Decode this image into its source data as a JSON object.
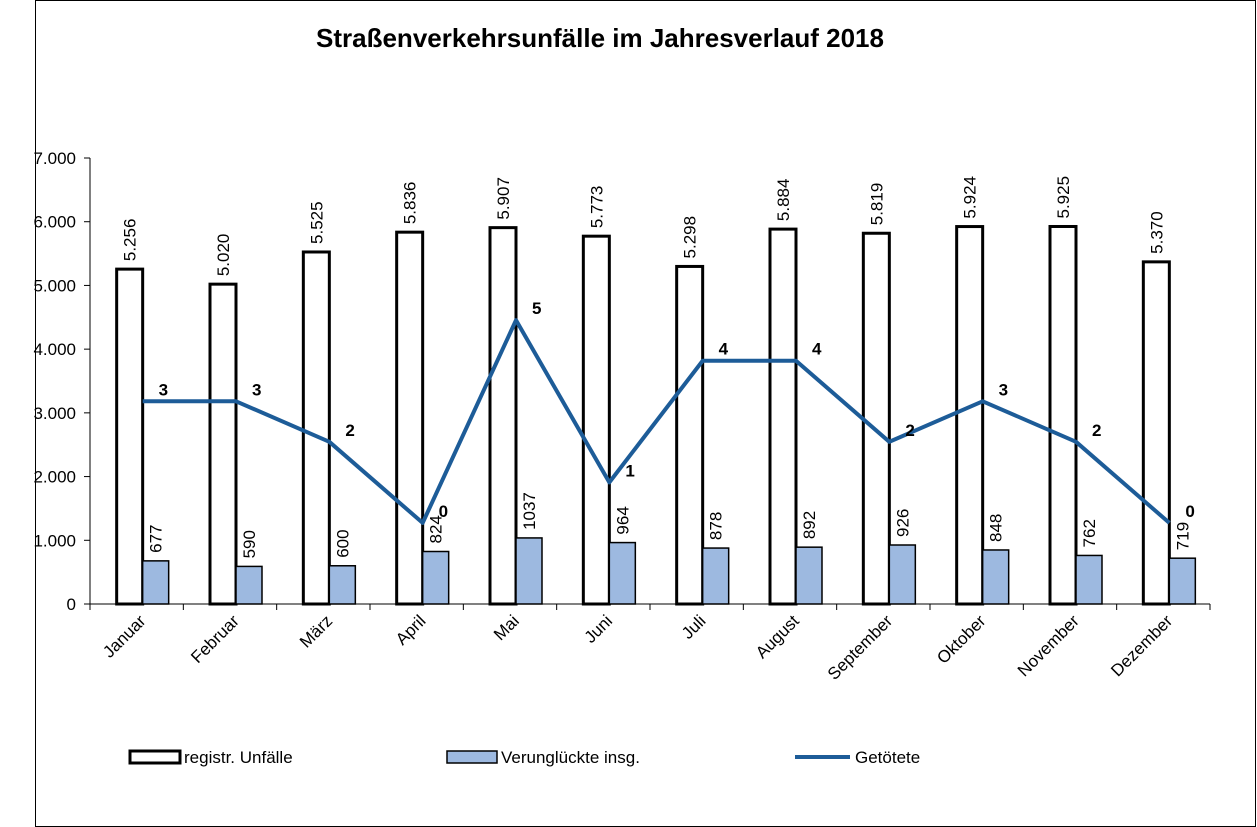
{
  "chart_data": {
    "type": "bar-line",
    "title": "Straßenverkehrsunfälle im Jahresverlauf 2018",
    "categories": [
      "Januar",
      "Februar",
      "März",
      "April",
      "Mai",
      "Juni",
      "Juli",
      "August",
      "September",
      "Oktober",
      "November",
      "Dezember"
    ],
    "series": [
      {
        "name": "registr.  Unfälle",
        "type": "bar",
        "color": "#ffffff",
        "values": [
          5256,
          5020,
          5525,
          5836,
          5907,
          5773,
          5298,
          5884,
          5819,
          5924,
          5925,
          5370
        ],
        "value_labels": [
          "5.256",
          "5.020",
          "5.525",
          "5.836",
          "5.907",
          "5.773",
          "5.298",
          "5.884",
          "5.819",
          "5.924",
          "5.925",
          "5.370"
        ]
      },
      {
        "name": "Verunglückte insg.",
        "type": "bar",
        "color": "#9db9e0",
        "values": [
          677,
          590,
          600,
          824,
          1037,
          964,
          878,
          892,
          926,
          848,
          762,
          719
        ]
      },
      {
        "name": "Getötete",
        "type": "line",
        "axis": "y2",
        "color": "#1d5c98",
        "values": [
          3,
          3,
          2,
          0,
          5,
          1,
          4,
          4,
          2,
          3,
          2,
          0
        ]
      }
    ],
    "ylim": [
      0,
      7000
    ],
    "yticks": [
      0,
      {
        "value": 1000,
        "label": "1.000"
      },
      {
        "value": 2000,
        "label": "2.000"
      },
      {
        "value": 3000,
        "label": "3.000"
      },
      {
        "value": 4000,
        "label": "4.000"
      },
      {
        "value": 5000,
        "label": "5.000"
      },
      {
        "value": 6000,
        "label": "6.000"
      },
      {
        "value": 7000,
        "label": "7.000"
      }
    ],
    "y2lim": [
      -2,
      9
    ],
    "label_color": "#0000ee",
    "legend": "bottom"
  }
}
